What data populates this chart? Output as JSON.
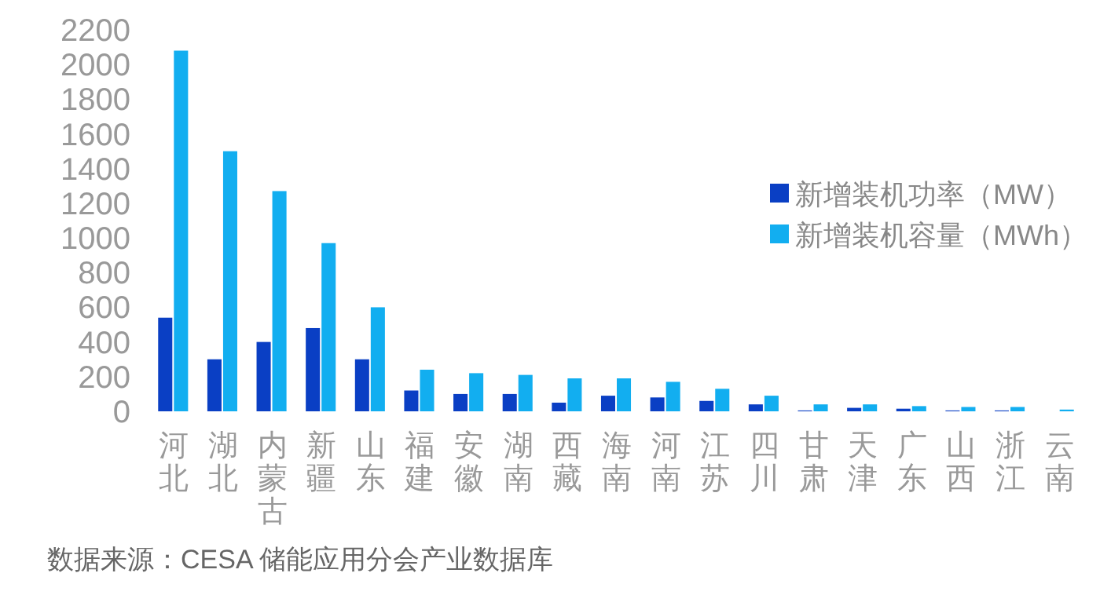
{
  "chart_data": {
    "type": "bar",
    "categories": [
      "河北",
      "湖北",
      "内蒙古",
      "新疆",
      "山东",
      "福建",
      "安徽",
      "湖南",
      "西藏",
      "海南",
      "河南",
      "江苏",
      "四川",
      "甘肃",
      "天津",
      "广东",
      "山西",
      "浙江",
      "云南"
    ],
    "series": [
      {
        "name": "新增装机功率（MW）",
        "color": "#0a3fc4",
        "values": [
          540,
          300,
          400,
          480,
          300,
          120,
          100,
          100,
          50,
          90,
          80,
          60,
          40,
          5,
          20,
          15,
          5,
          5,
          null
        ]
      },
      {
        "name": "新增装机容量（MWh）",
        "color": "#12aef0",
        "values": [
          2080,
          1500,
          1270,
          970,
          600,
          240,
          220,
          210,
          190,
          190,
          170,
          130,
          90,
          40,
          40,
          30,
          25,
          25,
          10
        ]
      }
    ],
    "ylim": [
      0,
      2200
    ],
    "yticks": [
      0,
      200,
      400,
      600,
      800,
      1000,
      1200,
      1400,
      1600,
      1800,
      2000,
      2200
    ],
    "legend": "right",
    "annotations": [
      "数据来源：CESA  储能应用分会产业数据库"
    ]
  }
}
